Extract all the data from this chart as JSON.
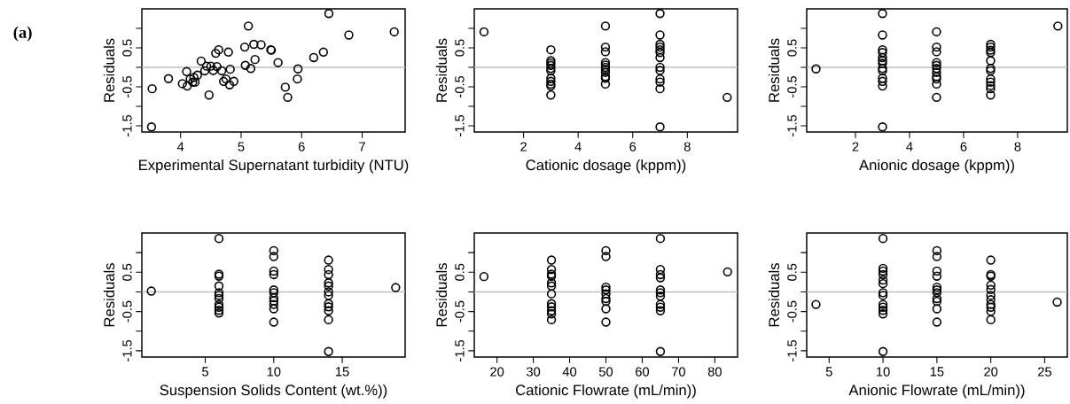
{
  "chart_data": [
    {
      "type": "scatter",
      "xlabel": "Experimental Supernatant turbidity (NTU)",
      "ylabel": "Residuals",
      "annotations": [
        "(a)"
      ],
      "marker": "circle",
      "color": "#000000",
      "x": [
        3.53,
        3.52,
        3.8,
        4.03,
        4.1,
        4.11,
        4.16,
        4.2,
        4.22,
        4.24,
        4.28,
        4.34,
        4.4,
        4.43,
        4.47,
        4.5,
        4.54,
        4.6,
        4.58,
        4.63,
        4.68,
        4.71,
        4.75,
        4.79,
        4.81,
        4.82,
        4.88,
        5.06,
        5.07,
        5.12,
        5.16,
        5.21,
        5.23,
        5.33,
        5.49,
        5.5,
        5.61,
        5.73,
        5.77,
        5.93,
        5.94,
        6.2,
        6.36,
        6.45,
        6.78,
        7.53
      ],
      "values": [
        -0.55,
        -1.53,
        -0.29,
        -0.42,
        -0.11,
        -0.48,
        -0.3,
        -0.38,
        -0.26,
        -0.38,
        -0.2,
        0.16,
        -0.09,
        0.03,
        -0.71,
        0.03,
        -0.08,
        0.02,
        0.36,
        0.45,
        -0.09,
        -0.36,
        -0.3,
        0.39,
        -0.45,
        -0.05,
        -0.36,
        0.52,
        0.05,
        1.06,
        -0.03,
        0.59,
        0.2,
        0.58,
        0.45,
        0.44,
        0.12,
        -0.51,
        -0.77,
        -0.3,
        -0.04,
        0.25,
        0.39,
        1.38,
        0.83,
        0.91
      ],
      "xlim": [
        3.36,
        7.71
      ],
      "ylim": [
        -1.66,
        1.5
      ],
      "xticks": [
        4,
        5,
        6,
        7
      ],
      "yticks": [
        -1.5,
        {
          "value": -1,
          "label": null
        },
        -0.5,
        {
          "value": 0,
          "label": null
        },
        0.5,
        {
          "value": 1,
          "label": null
        }
      ],
      "ref_lines": [
        {
          "axis": "y",
          "value": 0,
          "color": "#bebebe"
        }
      ]
    },
    {
      "type": "scatter",
      "xlabel": "Cationic dosage (kppm))",
      "ylabel": "Residuals",
      "marker": "circle",
      "color": "#000000",
      "x": [
        0.55,
        9.46,
        3,
        3,
        3,
        3,
        3,
        3,
        3,
        3,
        3,
        3,
        3,
        5,
        5,
        5,
        5,
        5,
        5,
        5,
        5,
        5,
        5,
        5,
        7,
        7,
        7,
        7,
        7,
        7,
        7,
        7,
        7,
        7,
        7,
        7,
        7
      ],
      "values": [
        0.91,
        -0.77,
        0.45,
        0.17,
        0.11,
        0.05,
        -0.03,
        -0.09,
        -0.28,
        -0.36,
        -0.43,
        -0.48,
        -0.71,
        1.06,
        0.52,
        0.4,
        0.12,
        0.06,
        0,
        -0.05,
        -0.13,
        -0.24,
        -0.28,
        -0.43,
        1.38,
        0.83,
        0.59,
        0.52,
        0.45,
        0.38,
        0.25,
        0,
        -0.08,
        -0.3,
        -0.38,
        -0.55,
        -1.53
      ],
      "xlim": [
        0.195,
        9.84
      ],
      "ylim": [
        -1.66,
        1.5
      ],
      "xticks": [
        2,
        4,
        6,
        8
      ],
      "yticks": [
        -1.5,
        {
          "value": -1,
          "label": null
        },
        -0.5,
        {
          "value": 0,
          "label": null
        },
        0.5,
        {
          "value": 1,
          "label": null
        }
      ],
      "ref_lines": [
        {
          "axis": "y",
          "value": 0,
          "color": "#bebebe"
        }
      ]
    },
    {
      "type": "scatter",
      "xlabel": "Anionic dosage (kppm))",
      "ylabel": "Residuals",
      "marker": "circle",
      "color": "#000000",
      "x": [
        0.54,
        9.49,
        3,
        3,
        3,
        3,
        3,
        3,
        3,
        3,
        3,
        3,
        3,
        3,
        3,
        5,
        5,
        5,
        5,
        5,
        5,
        5,
        5,
        5,
        5,
        5,
        7,
        7,
        7,
        7,
        7,
        7,
        7,
        7,
        7,
        7,
        7,
        7
      ],
      "values": [
        -0.04,
        1.06,
        1.38,
        0.83,
        0.45,
        0.38,
        0.25,
        0.17,
        0.1,
        -0.03,
        -0.09,
        -0.28,
        -0.36,
        -0.48,
        -1.53,
        0.91,
        0.52,
        0.4,
        0.12,
        0.05,
        -0.03,
        -0.13,
        -0.24,
        -0.3,
        -0.43,
        -0.77,
        0.59,
        0.52,
        0.44,
        0.38,
        0.17,
        -0.03,
        -0.09,
        -0.3,
        -0.38,
        -0.47,
        -0.55,
        -0.71
      ],
      "xlim": [
        0.195,
        9.84
      ],
      "ylim": [
        -1.66,
        1.5
      ],
      "xticks": [
        2,
        4,
        6,
        8
      ],
      "yticks": [
        -1.5,
        {
          "value": -1,
          "label": null
        },
        -0.5,
        {
          "value": 0,
          "label": null
        },
        0.5,
        {
          "value": 1,
          "label": null
        }
      ],
      "ref_lines": [
        {
          "axis": "y",
          "value": 0,
          "color": "#bebebe"
        }
      ]
    },
    {
      "type": "scatter",
      "xlabel": "Suspension Solids Content (wt.%))",
      "ylabel": "Residuals",
      "marker": "circle",
      "color": "#000000",
      "x": [
        1.06,
        18.9,
        6,
        6,
        6,
        6,
        6,
        6,
        6,
        6,
        6,
        6,
        6,
        10,
        10,
        10,
        10,
        10,
        10,
        10,
        10,
        10,
        10,
        10,
        14,
        14,
        14,
        14,
        14,
        14,
        14,
        14,
        14,
        14,
        14,
        14
      ],
      "values": [
        0.02,
        0.11,
        1.36,
        0.45,
        0.4,
        0.15,
        -0.02,
        -0.09,
        -0.17,
        -0.32,
        -0.39,
        -0.47,
        -0.54,
        1.05,
        0.9,
        0.53,
        0.44,
        0.05,
        -0.02,
        -0.15,
        -0.23,
        -0.32,
        -0.43,
        -0.77,
        0.81,
        0.57,
        0.44,
        0.23,
        0.15,
        0,
        -0.09,
        -0.3,
        -0.38,
        -0.48,
        -0.71,
        -1.52
      ],
      "xlim": [
        0.37,
        19.59
      ],
      "ylim": [
        -1.66,
        1.5
      ],
      "xticks": [
        5,
        10,
        15
      ],
      "yticks": [
        -1.5,
        {
          "value": -1,
          "label": null
        },
        -0.5,
        {
          "value": 0,
          "label": null
        },
        0.5,
        {
          "value": 1,
          "label": null
        }
      ],
      "ref_lines": [
        {
          "axis": "y",
          "value": 0,
          "color": "#bebebe"
        }
      ]
    },
    {
      "type": "scatter",
      "xlabel": "Cationic Flowrate (mL/min))",
      "ylabel": "Residuals",
      "marker": "circle",
      "color": "#000000",
      "x": [
        16.4,
        83.5,
        35,
        35,
        35,
        35,
        35,
        35,
        35,
        35,
        35,
        35,
        35,
        35,
        50,
        50,
        50,
        50,
        50,
        50,
        50,
        50,
        50,
        65,
        65,
        65,
        65,
        65,
        65,
        65,
        65,
        65,
        65,
        65
      ],
      "values": [
        0.39,
        0.51,
        0.81,
        0.57,
        0.45,
        0.4,
        0.23,
        0.15,
        -0.05,
        -0.3,
        -0.38,
        -0.48,
        -0.56,
        -0.71,
        1.05,
        0.9,
        0.12,
        0.05,
        -0.05,
        -0.17,
        -0.24,
        -0.43,
        -0.77,
        1.36,
        0.57,
        0.44,
        0.36,
        0.05,
        -0.02,
        -0.11,
        -0.32,
        -0.39,
        -0.48,
        -1.52
      ],
      "xlim": [
        13.74,
        86.26
      ],
      "ylim": [
        -1.66,
        1.5
      ],
      "xticks": [
        20,
        30,
        40,
        50,
        60,
        70,
        80
      ],
      "yticks": [
        -1.5,
        {
          "value": -1,
          "label": null
        },
        -0.5,
        {
          "value": 0,
          "label": null
        },
        0.5,
        {
          "value": 1,
          "label": null
        }
      ],
      "ref_lines": [
        {
          "axis": "y",
          "value": 0,
          "color": "#bebebe"
        }
      ]
    },
    {
      "type": "scatter",
      "xlabel": "Anionic Flowrate (mL/min))",
      "ylabel": "Residuals",
      "marker": "circle",
      "color": "#000000",
      "x": [
        3.78,
        26.16,
        10,
        10,
        10,
        10,
        10,
        10,
        10,
        10,
        10,
        10,
        10,
        10,
        10,
        15,
        15,
        15,
        15,
        15,
        15,
        15,
        15,
        15,
        15,
        15,
        20,
        20,
        20,
        20,
        20,
        20,
        20,
        20,
        20,
        20,
        20
      ],
      "values": [
        -0.32,
        -0.26,
        1.36,
        0.6,
        0.53,
        0.44,
        0.3,
        0.21,
        -0.02,
        -0.09,
        -0.32,
        -0.39,
        -0.47,
        -0.56,
        -1.52,
        1.05,
        0.9,
        0.53,
        0.4,
        0.12,
        0.05,
        -0.02,
        -0.17,
        -0.24,
        -0.43,
        -0.77,
        0.81,
        0.44,
        0.4,
        0.17,
        0.06,
        -0.09,
        -0.2,
        -0.32,
        -0.39,
        -0.5,
        -0.71
      ],
      "xlim": [
        2.92,
        27.1
      ],
      "ylim": [
        -1.66,
        1.5
      ],
      "xticks": [
        5,
        10,
        15,
        20,
        25
      ],
      "yticks": [
        -1.5,
        {
          "value": -1,
          "label": null
        },
        -0.5,
        {
          "value": 0,
          "label": null
        },
        0.5,
        {
          "value": 1,
          "label": null
        }
      ],
      "ref_lines": [
        {
          "axis": "y",
          "value": 0,
          "color": "#bebebe"
        }
      ]
    }
  ]
}
